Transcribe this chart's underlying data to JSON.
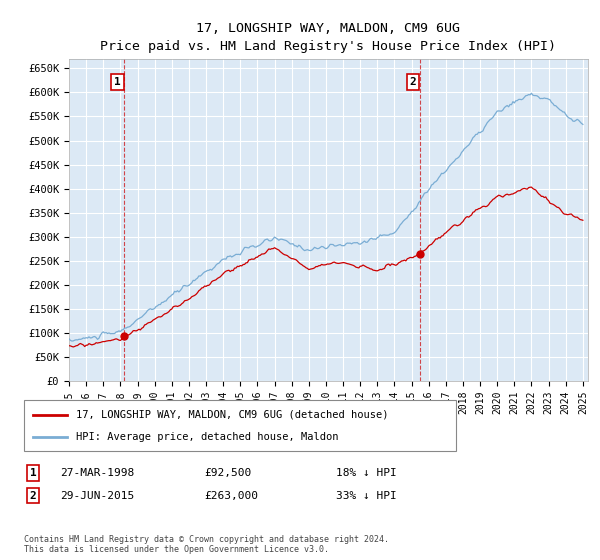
{
  "title": "17, LONGSHIP WAY, MALDON, CM9 6UG",
  "subtitle": "Price paid vs. HM Land Registry's House Price Index (HPI)",
  "xlim_start": 1995.0,
  "xlim_end": 2025.3,
  "ylim_bottom": 0,
  "ylim_top": 670000,
  "yticks": [
    0,
    50000,
    100000,
    150000,
    200000,
    250000,
    300000,
    350000,
    400000,
    450000,
    500000,
    550000,
    600000,
    650000
  ],
  "ytick_labels": [
    "£0",
    "£50K",
    "£100K",
    "£150K",
    "£200K",
    "£250K",
    "£300K",
    "£350K",
    "£400K",
    "£450K",
    "£500K",
    "£550K",
    "£600K",
    "£650K"
  ],
  "sale1_x": 1998.24,
  "sale1_y": 92500,
  "sale1_label": "1",
  "sale1_date": "27-MAR-1998",
  "sale1_price": "£92,500",
  "sale1_hpi": "18% ↓ HPI",
  "sale2_x": 2015.49,
  "sale2_y": 263000,
  "sale2_label": "2",
  "sale2_date": "29-JUN-2015",
  "sale2_price": "£263,000",
  "sale2_hpi": "33% ↓ HPI",
  "hpi_color": "#7aadd4",
  "price_color": "#cc0000",
  "bg_color": "#dce9f5",
  "grid_color": "#c5d9ed",
  "legend_line1": "17, LONGSHIP WAY, MALDON, CM9 6UG (detached house)",
  "legend_line2": "HPI: Average price, detached house, Maldon",
  "footer": "Contains HM Land Registry data © Crown copyright and database right 2024.\nThis data is licensed under the Open Government Licence v3.0."
}
